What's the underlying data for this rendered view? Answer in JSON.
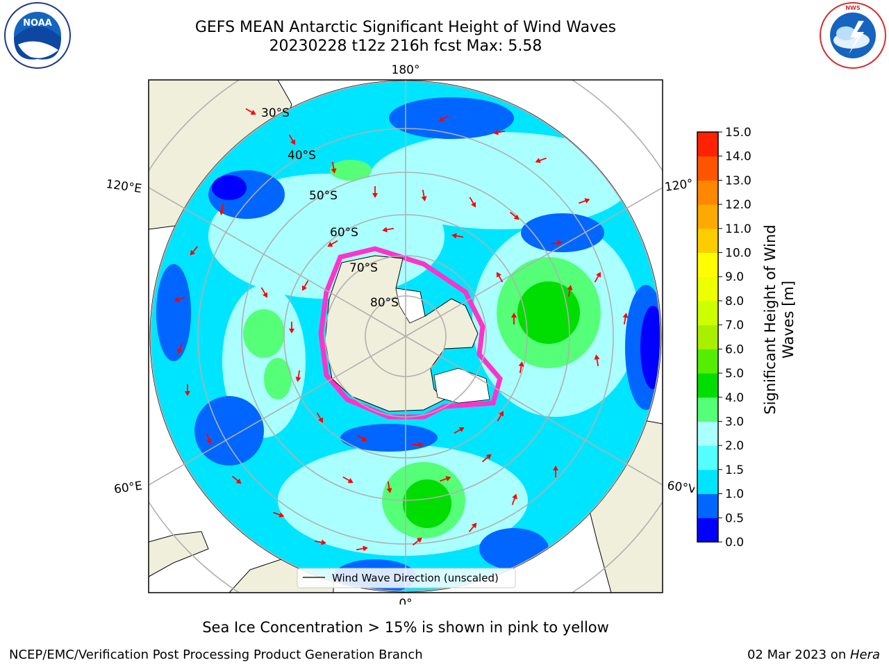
{
  "title": {
    "line1": "GEFS MEAN Antarctic Significant Height of Wind Waves",
    "line2": "20230228 t12z 216h fcst   Max: 5.58"
  },
  "map": {
    "longitude_labels": {
      "top": "180°",
      "bottom": "0°",
      "upper_left": "120°E",
      "upper_right": "120°",
      "lower_left": "60°E",
      "lower_right": "60°V"
    },
    "latitude_labels": [
      "30°S",
      "40°S",
      "50°S",
      "60°S",
      "70°S",
      "80°S"
    ],
    "legend_label": "Wind Wave Direction (unscaled)"
  },
  "colorbar": {
    "label": "Significant Height of Wind Waves [m]",
    "label_line1": "Significant Height of Wind",
    "label_line2": "Waves [m]",
    "ticks": [
      "0.0",
      "0.5",
      "1.0",
      "1.5",
      "2.0",
      "3.0",
      "4.0",
      "5.0",
      "6.0",
      "7.0",
      "8.0",
      "9.0",
      "10.0",
      "11.0",
      "12.0",
      "13.0",
      "14.0",
      "15.0"
    ],
    "colors": [
      "#0000ff",
      "#0066ff",
      "#00e5ff",
      "#55ffff",
      "#aaffff",
      "#55ff77",
      "#00dd00",
      "#55ee00",
      "#aaee00",
      "#ccff00",
      "#eeff00",
      "#ffff00",
      "#ffcc00",
      "#ffaa00",
      "#ff8800",
      "#ff5500",
      "#ff2200"
    ]
  },
  "note": "Sea Ice Concentration > 15% is shown in pink to yellow",
  "footer": {
    "left": "NCEP/EMC/Verification Post Processing Product Generation Branch",
    "right_prefix": "02 Mar 2023 on ",
    "right_machine": "Hera"
  },
  "logos": {
    "left": "NOAA",
    "right": "NATIONAL WEATHER SERVICE"
  }
}
